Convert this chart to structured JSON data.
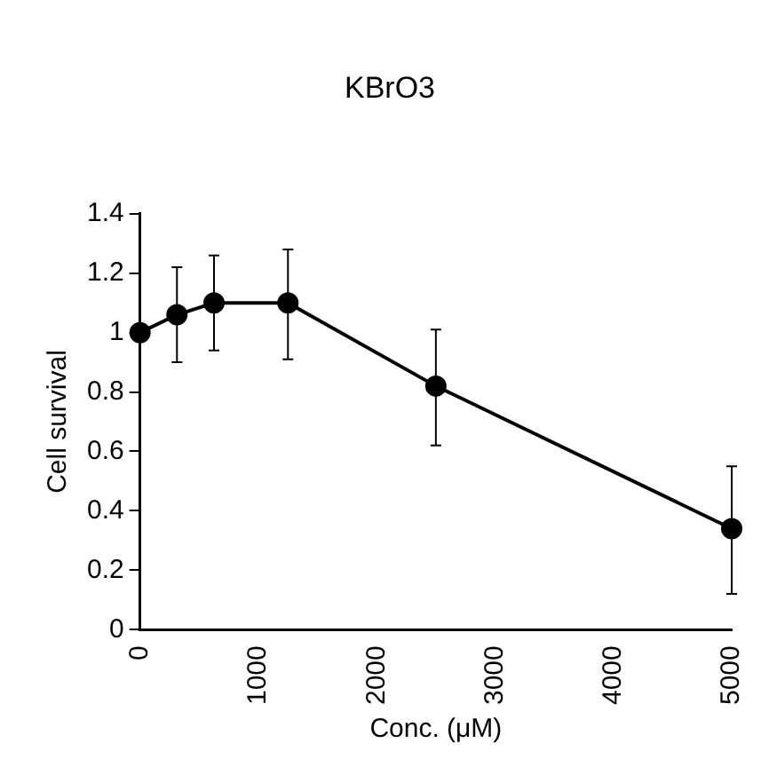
{
  "chart_data": {
    "type": "line",
    "title": "KBrO3",
    "xlabel": "Conc. (μM)",
    "ylabel": "Cell survival",
    "x": [
      0,
      312,
      625,
      1250,
      2500,
      5000
    ],
    "series": [
      {
        "color": "#000000",
        "values": [
          1.0,
          1.06,
          1.1,
          1.1,
          0.82,
          0.34
        ],
        "errors": [
          null,
          [
            0.9,
            1.22
          ],
          [
            0.94,
            1.26
          ],
          [
            0.91,
            1.28
          ],
          [
            0.62,
            1.01
          ],
          [
            0.12,
            0.55
          ]
        ]
      }
    ],
    "xlim": [
      0,
      5000
    ],
    "xticks": [
      0,
      1000,
      2000,
      3000,
      4000,
      5000
    ],
    "ylim": [
      0,
      1.4
    ],
    "yticks": [
      0,
      0.2,
      0.4,
      0.6,
      0.8,
      1,
      1.2,
      1.4
    ],
    "grid": false,
    "legend": false,
    "marker": "circle",
    "line_style": "solid"
  }
}
